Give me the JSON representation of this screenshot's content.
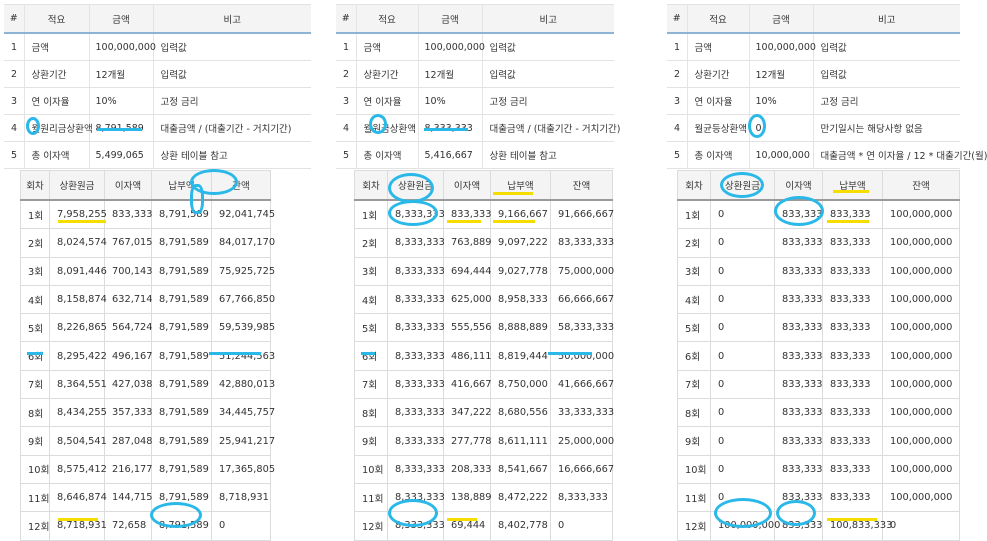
{
  "summary_headers": [
    "#",
    "적요",
    "금액",
    "비고"
  ],
  "panels": [
    {
      "summary_rows": [
        [
          "1",
          "금액",
          "100,000,000",
          "입력값"
        ],
        [
          "2",
          "상환기간",
          "12개월",
          "입력값"
        ],
        [
          "3",
          "연 이자율",
          "10%",
          "고정 금리"
        ],
        [
          "4",
          "월원리금상환액",
          "8,791,589",
          "대출금액 / (대출기간 - 거치기간)"
        ],
        [
          "5",
          "총 이자액",
          "5,499,065",
          "상환 테이블 참고"
        ]
      ],
      "schedule_headers": [
        "회차",
        "상환원금",
        "이자액",
        "납부액",
        "잔액"
      ],
      "schedule_rows": [
        [
          "1회",
          "7,958,255",
          "833,333",
          "8,791,589",
          "92,041,745"
        ],
        [
          "2회",
          "8,024,574",
          "767,015",
          "8,791,589",
          "84,017,170"
        ],
        [
          "3회",
          "8,091,446",
          "700,143",
          "8,791,589",
          "75,925,725"
        ],
        [
          "4회",
          "8,158,874",
          "632,714",
          "8,791,589",
          "67,766,850"
        ],
        [
          "5회",
          "8,226,865",
          "564,724",
          "8,791,589",
          "59,539,985"
        ],
        [
          "6회",
          "8,295,422",
          "496,167",
          "8,791,589",
          "51,244,563"
        ],
        [
          "7회",
          "8,364,551",
          "427,038",
          "8,791,589",
          "42,880,013"
        ],
        [
          "8회",
          "8,434,255",
          "357,333",
          "8,791,589",
          "34,445,757"
        ],
        [
          "9회",
          "8,504,541",
          "287,048",
          "8,791,589",
          "25,941,217"
        ],
        [
          "10회",
          "8,575,412",
          "216,177",
          "8,791,589",
          "17,365,805"
        ],
        [
          "11회",
          "8,646,874",
          "144,715",
          "8,791,589",
          "8,718,931"
        ],
        [
          "12회",
          "8,718,931",
          "72,658",
          "8,791,589",
          "0"
        ]
      ]
    },
    {
      "summary_rows": [
        [
          "1",
          "금액",
          "100,000,000",
          "입력값"
        ],
        [
          "2",
          "상환기간",
          "12개월",
          "입력값"
        ],
        [
          "3",
          "연 이자율",
          "10%",
          "고정 금리"
        ],
        [
          "4",
          "월원금상환액",
          "8,333,333",
          "대출금액 / (대출기간 - 거치기간)"
        ],
        [
          "5",
          "총 이자액",
          "5,416,667",
          "상환 테이블 참고"
        ]
      ],
      "schedule_headers": [
        "회차",
        "상환원금",
        "이자액",
        "납부액",
        "잔액"
      ],
      "schedule_rows": [
        [
          "1회",
          "8,333,333",
          "833,333",
          "9,166,667",
          "91,666,667"
        ],
        [
          "2회",
          "8,333,333",
          "763,889",
          "9,097,222",
          "83,333,333"
        ],
        [
          "3회",
          "8,333,333",
          "694,444",
          "9,027,778",
          "75,000,000"
        ],
        [
          "4회",
          "8,333,333",
          "625,000",
          "8,958,333",
          "66,666,667"
        ],
        [
          "5회",
          "8,333,333",
          "555,556",
          "8,888,889",
          "58,333,333"
        ],
        [
          "6회",
          "8,333,333",
          "486,111",
          "8,819,444",
          "50,000,000"
        ],
        [
          "7회",
          "8,333,333",
          "416,667",
          "8,750,000",
          "41,666,667"
        ],
        [
          "8회",
          "8,333,333",
          "347,222",
          "8,680,556",
          "33,333,333"
        ],
        [
          "9회",
          "8,333,333",
          "277,778",
          "8,611,111",
          "25,000,000"
        ],
        [
          "10회",
          "8,333,333",
          "208,333",
          "8,541,667",
          "16,666,667"
        ],
        [
          "11회",
          "8,333,333",
          "138,889",
          "8,472,222",
          "8,333,333"
        ],
        [
          "12회",
          "8,333,333",
          "69,444",
          "8,402,778",
          "0"
        ]
      ]
    },
    {
      "summary_rows": [
        [
          "1",
          "금액",
          "100,000,000",
          "입력값"
        ],
        [
          "2",
          "상환기간",
          "12개월",
          "입력값"
        ],
        [
          "3",
          "연 이자율",
          "10%",
          "고정 금리"
        ],
        [
          "4",
          "월균등상환액",
          "0",
          "만기일시는 해당사항 없음"
        ],
        [
          "5",
          "총 이자액",
          "10,000,000",
          "대출금액 * 연 이자율 / 12 * 대출기간(월)"
        ]
      ],
      "schedule_headers": [
        "회차",
        "상환원금",
        "이자액",
        "납부액",
        "잔액"
      ],
      "schedule_rows": [
        [
          "1회",
          "0",
          "833,333",
          "833,333",
          "100,000,000"
        ],
        [
          "2회",
          "0",
          "833,333",
          "833,333",
          "100,000,000"
        ],
        [
          "3회",
          "0",
          "833,333",
          "833,333",
          "100,000,000"
        ],
        [
          "4회",
          "0",
          "833,333",
          "833,333",
          "100,000,000"
        ],
        [
          "5회",
          "0",
          "833,333",
          "833,333",
          "100,000,000"
        ],
        [
          "6회",
          "0",
          "833,333",
          "833,333",
          "100,000,000"
        ],
        [
          "7회",
          "0",
          "833,333",
          "833,333",
          "100,000,000"
        ],
        [
          "8회",
          "0",
          "833,333",
          "833,333",
          "100,000,000"
        ],
        [
          "9회",
          "0",
          "833,333",
          "833,333",
          "100,000,000"
        ],
        [
          "10회",
          "0",
          "833,333",
          "833,333",
          "100,000,000"
        ],
        [
          "11회",
          "0",
          "833,333",
          "833,333",
          "100,000,000"
        ],
        [
          "12회",
          "100,000,000",
          "833,333",
          "100,833,333",
          "0"
        ]
      ]
    }
  ],
  "colors": {
    "highlight_yellow": "#f5dd00",
    "highlight_blue": "#2ab8e9"
  }
}
